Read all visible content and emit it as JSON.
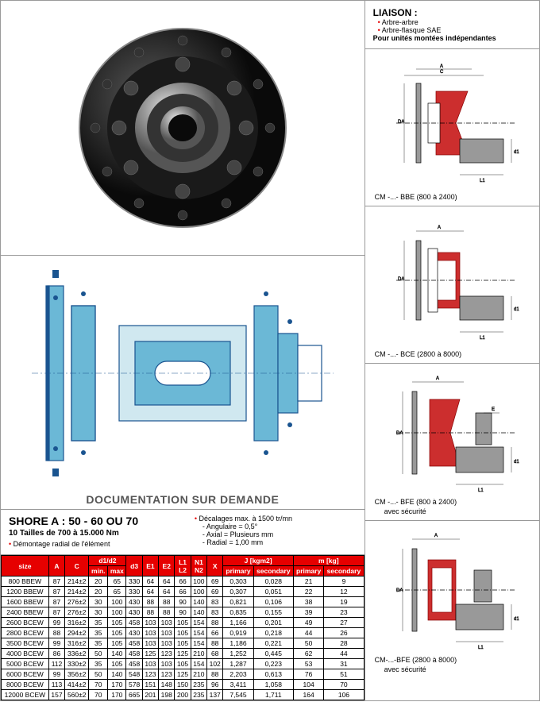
{
  "colors": {
    "accent": "#e60000",
    "tech_blue": "#6bb8d6",
    "tech_line": "#1a5490",
    "mini_red": "#cc2e2e",
    "mini_grey": "#999999",
    "border": "#000000"
  },
  "liaison": {
    "title": "LIAISON :",
    "items": [
      "Arbre-arbre",
      "Arbre-flasque SAE"
    ],
    "bold": "Pour unités montées indépendantes"
  },
  "minis": [
    {
      "label": "CM -...- BBE (800 à 2400)"
    },
    {
      "label": "CM -...- BCE (2800 à 8000)"
    },
    {
      "label": "CM -...- BFE (800 à 2400)",
      "sub": "avec sécurité"
    },
    {
      "label": "CM-...-BFE (2800 à 8000)",
      "sub": "avec sécurité"
    }
  ],
  "doc_demand": "DOCUMENTATION SUR DEMANDE",
  "shore": {
    "title": "SHORE A : 50 - 60 OU 70",
    "sub": "10 Tailles de 700 à 15.000 Nm",
    "note": "Démontage radial de l'élément",
    "decal_title": "Décalages max. à 1500 tr/mn",
    "decal": [
      "- Angulaire = 0,5°",
      "- Axial        = Plusieurs mm",
      "- Radial      = 1,00 mm"
    ]
  },
  "table": {
    "headers_top": [
      "size",
      "A",
      "C",
      "d1/d2",
      "d3",
      "E1",
      "E2",
      "L1\nL2",
      "N1\nN2",
      "X",
      "J [kgm2]",
      "m [kg]"
    ],
    "d1d2_sub": [
      "min.",
      "max"
    ],
    "j_sub": [
      "primary",
      "secondary"
    ],
    "m_sub": [
      "primary",
      "secondary"
    ],
    "rows": [
      [
        "800 BBEW",
        "87",
        "214±2",
        "20",
        "65",
        "330",
        "64",
        "64",
        "66",
        "100",
        "69",
        "0,303",
        "0,028",
        "21",
        "9"
      ],
      [
        "1200 BBEW",
        "87",
        "214±2",
        "20",
        "65",
        "330",
        "64",
        "64",
        "66",
        "100",
        "69",
        "0,307",
        "0,051",
        "22",
        "12"
      ],
      [
        "1600 BBEW",
        "87",
        "276±2",
        "30",
        "100",
        "430",
        "88",
        "88",
        "90",
        "140",
        "83",
        "0,821",
        "0,106",
        "38",
        "19"
      ],
      [
        "2400 BBEW",
        "87",
        "276±2",
        "30",
        "100",
        "430",
        "88",
        "88",
        "90",
        "140",
        "83",
        "0,835",
        "0,155",
        "39",
        "23"
      ],
      [
        "2600 BCEW",
        "99",
        "316±2",
        "35",
        "105",
        "458",
        "103",
        "103",
        "105",
        "154",
        "88",
        "1,166",
        "0,201",
        "49",
        "27"
      ],
      [
        "2800 BCEW",
        "88",
        "294±2",
        "35",
        "105",
        "430",
        "103",
        "103",
        "105",
        "154",
        "66",
        "0,919",
        "0,218",
        "44",
        "26"
      ],
      [
        "3500 BCEW",
        "99",
        "316±2",
        "35",
        "105",
        "458",
        "103",
        "103",
        "105",
        "154",
        "88",
        "1,186",
        "0,221",
        "50",
        "28"
      ],
      [
        "4000 BCEW",
        "86",
        "336±2",
        "50",
        "140",
        "458",
        "125",
        "123",
        "125",
        "210",
        "68",
        "1,252",
        "0,445",
        "62",
        "44"
      ],
      [
        "5000 BCEW",
        "112",
        "330±2",
        "35",
        "105",
        "458",
        "103",
        "103",
        "105",
        "154",
        "102",
        "1,287",
        "0,223",
        "53",
        "31"
      ],
      [
        "6000 BCEW",
        "99",
        "356±2",
        "50",
        "140",
        "548",
        "123",
        "123",
        "125",
        "210",
        "88",
        "2,203",
        "0,613",
        "76",
        "51"
      ],
      [
        "8000 BCEW",
        "113",
        "414±2",
        "70",
        "170",
        "578",
        "151",
        "148",
        "150",
        "235",
        "96",
        "3,411",
        "1,058",
        "104",
        "70"
      ],
      [
        "12000 BCEW",
        "157",
        "560±2",
        "70",
        "170",
        "665",
        "201",
        "198",
        "200",
        "235",
        "137",
        "7,545",
        "1,711",
        "164",
        "106"
      ]
    ]
  }
}
